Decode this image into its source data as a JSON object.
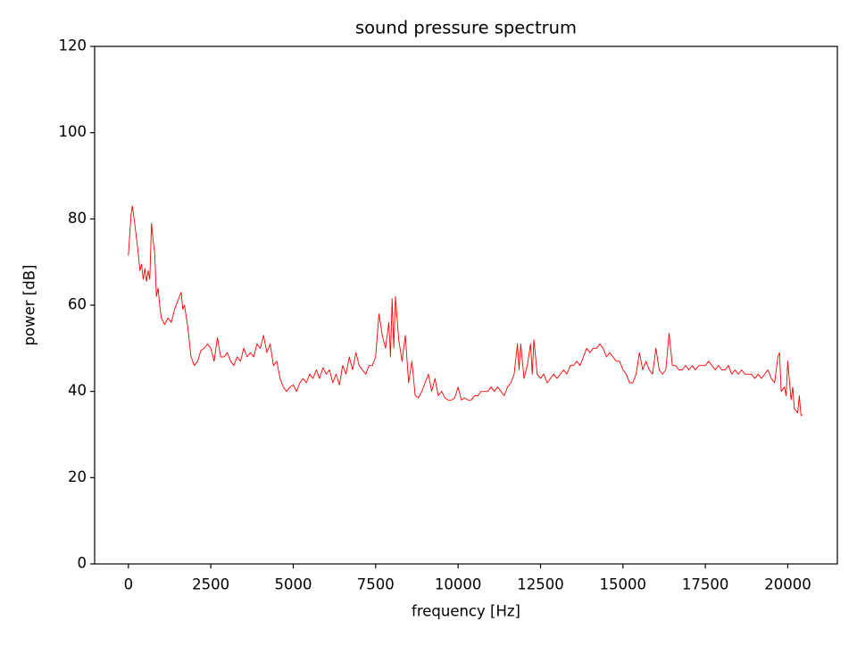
{
  "chart_data": {
    "type": "line",
    "title": "sound pressure spectrum",
    "x_label": "frequency [Hz]",
    "y_label": "power [dB]",
    "xlim": [
      -1024,
      21504
    ],
    "ylim": [
      0,
      120
    ],
    "xticks": [
      0,
      2500,
      5000,
      7500,
      10000,
      12500,
      15000,
      17500,
      20000
    ],
    "yticks": [
      0,
      20,
      40,
      60,
      80,
      100,
      120
    ],
    "grid": false,
    "series": [
      {
        "name": "spectrum",
        "color": "#ff0000",
        "x": [
          0,
          80,
          120,
          200,
          300,
          350,
          400,
          450,
          500,
          550,
          600,
          650,
          700,
          750,
          800,
          850,
          900,
          950,
          1000,
          1100,
          1200,
          1300,
          1400,
          1500,
          1600,
          1650,
          1700,
          1800,
          1900,
          2000,
          2100,
          2200,
          2300,
          2400,
          2500,
          2600,
          2700,
          2800,
          2900,
          3000,
          3100,
          3200,
          3300,
          3400,
          3500,
          3600,
          3700,
          3800,
          3900,
          4000,
          4100,
          4200,
          4300,
          4400,
          4500,
          4600,
          4700,
          4800,
          4900,
          5000,
          5100,
          5200,
          5300,
          5400,
          5500,
          5600,
          5700,
          5800,
          5900,
          6000,
          6100,
          6200,
          6300,
          6400,
          6500,
          6600,
          6700,
          6800,
          6900,
          7000,
          7100,
          7200,
          7300,
          7400,
          7500,
          7600,
          7700,
          7800,
          7900,
          7950,
          8000,
          8050,
          8100,
          8200,
          8300,
          8400,
          8500,
          8600,
          8700,
          8800,
          8900,
          9000,
          9100,
          9200,
          9300,
          9400,
          9500,
          9600,
          9700,
          9800,
          9900,
          10000,
          10100,
          10200,
          10300,
          10400,
          10500,
          10600,
          10700,
          10800,
          10900,
          11000,
          11100,
          11200,
          11300,
          11400,
          11500,
          11600,
          11700,
          11800,
          11850,
          11900,
          12000,
          12100,
          12200,
          12250,
          12300,
          12400,
          12500,
          12600,
          12700,
          12800,
          12900,
          13000,
          13100,
          13200,
          13300,
          13400,
          13500,
          13600,
          13700,
          13800,
          13900,
          14000,
          14100,
          14200,
          14300,
          14400,
          14500,
          14600,
          14700,
          14800,
          14900,
          15000,
          15100,
          15200,
          15300,
          15400,
          15500,
          15600,
          15700,
          15800,
          15900,
          16000,
          16100,
          16200,
          16300,
          16400,
          16500,
          16600,
          16700,
          16800,
          16900,
          17000,
          17100,
          17200,
          17300,
          17400,
          17500,
          17600,
          17700,
          17800,
          17900,
          18000,
          18100,
          18200,
          18300,
          18400,
          18500,
          18600,
          18700,
          18800,
          18900,
          19000,
          19100,
          19200,
          19300,
          19400,
          19500,
          19600,
          19700,
          19750,
          19800,
          19900,
          19950,
          20000,
          20100,
          20150,
          20200,
          20300,
          20350,
          20400,
          20450
        ],
        "values": [
          71.5,
          81,
          83,
          78.5,
          72,
          68,
          69.5,
          66,
          68.5,
          65.5,
          68,
          66,
          79,
          75,
          72,
          62,
          64,
          60,
          57,
          55.5,
          57,
          56,
          59,
          61,
          63,
          59,
          60,
          55,
          48,
          46,
          47,
          49.5,
          50,
          51,
          50,
          47,
          52.5,
          48,
          48,
          49,
          47,
          46,
          48,
          47,
          50,
          48,
          49,
          48,
          51,
          50,
          53,
          49,
          51,
          46,
          47,
          43,
          41,
          40,
          41,
          41.5,
          40,
          42,
          43,
          42,
          44,
          43,
          45,
          43,
          45.5,
          44,
          45,
          42,
          44,
          41.5,
          46,
          44,
          48,
          45,
          49,
          46,
          45,
          44,
          46,
          46,
          48,
          58,
          53,
          50,
          56,
          48,
          61.5,
          50,
          62,
          52,
          47,
          53,
          42,
          47,
          39,
          38.5,
          40,
          42,
          44,
          40,
          43,
          39,
          40,
          38.5,
          38,
          38,
          38.5,
          41,
          38,
          38.5,
          38,
          38,
          39,
          39,
          40,
          40,
          40,
          41,
          40,
          41,
          40,
          39,
          41,
          42,
          44,
          51,
          45,
          51,
          43,
          46,
          51,
          44,
          52,
          44,
          43,
          44,
          42,
          43,
          44,
          43,
          44,
          45,
          44,
          46,
          46,
          47,
          46,
          48,
          50,
          49,
          50,
          50,
          51,
          50,
          48,
          49,
          48,
          47,
          47,
          45,
          44,
          42,
          42,
          44,
          49,
          45,
          47,
          45,
          44,
          50,
          45,
          44,
          45,
          53.5,
          46,
          46,
          45,
          45,
          46,
          45,
          46,
          45,
          46,
          46,
          46,
          47,
          46,
          45,
          46,
          45,
          45,
          46,
          44,
          45,
          44,
          45,
          44,
          44,
          44,
          43,
          44,
          43,
          44,
          45,
          43,
          42,
          48,
          49,
          40,
          41,
          39,
          47,
          38,
          41,
          36,
          35,
          39,
          34.5,
          34.5
        ]
      }
    ]
  }
}
